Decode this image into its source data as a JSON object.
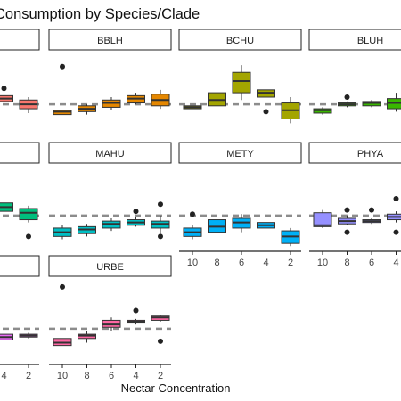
{
  "chart_data": {
    "type": "boxplot-facet",
    "title": "Consumption by Species/Clade",
    "xlabel": "Nectar Concentration",
    "ylabel": "",
    "categories": [
      "10",
      "8",
      "6",
      "4",
      "2"
    ],
    "reference_line": "dashed grey horizontal line",
    "facets": [
      {
        "name": "",
        "colour": "#F8766D",
        "boxes": [
          {
            "cat": "4",
            "q1": 0.57,
            "med": 0.59,
            "q3": 0.61,
            "lo": 0.55,
            "hi": 0.63,
            "out": [
              0.66
            ]
          },
          {
            "cat": "2",
            "q1": 0.52,
            "med": 0.55,
            "q3": 0.58,
            "lo": 0.49,
            "hi": 0.6,
            "out": []
          }
        ]
      },
      {
        "name": "BBLH",
        "colour": "#E58700",
        "boxes": [
          {
            "cat": "10",
            "q1": 0.48,
            "med": 0.5,
            "q3": 0.51,
            "lo": 0.48,
            "hi": 0.51,
            "out": [
              0.81
            ]
          },
          {
            "cat": "8",
            "q1": 0.5,
            "med": 0.52,
            "q3": 0.54,
            "lo": 0.48,
            "hi": 0.55,
            "out": []
          },
          {
            "cat": "6",
            "q1": 0.53,
            "med": 0.56,
            "q3": 0.58,
            "lo": 0.51,
            "hi": 0.6,
            "out": []
          },
          {
            "cat": "4",
            "q1": 0.56,
            "med": 0.59,
            "q3": 0.61,
            "lo": 0.55,
            "hi": 0.63,
            "out": []
          },
          {
            "cat": "2",
            "q1": 0.54,
            "med": 0.58,
            "q3": 0.62,
            "lo": 0.52,
            "hi": 0.65,
            "out": []
          }
        ]
      },
      {
        "name": "BCHU",
        "colour": "#A3A500",
        "boxes": [
          {
            "cat": "10",
            "q1": 0.52,
            "med": 0.53,
            "q3": 0.54,
            "lo": 0.52,
            "hi": 0.54,
            "out": []
          },
          {
            "cat": "8",
            "q1": 0.54,
            "med": 0.58,
            "q3": 0.63,
            "lo": 0.5,
            "hi": 0.67,
            "out": []
          },
          {
            "cat": "6",
            "q1": 0.63,
            "med": 0.71,
            "q3": 0.77,
            "lo": 0.58,
            "hi": 0.82,
            "out": []
          },
          {
            "cat": "4",
            "q1": 0.6,
            "med": 0.63,
            "q3": 0.65,
            "lo": 0.58,
            "hi": 0.69,
            "out": [
              0.5
            ]
          },
          {
            "cat": "2",
            "q1": 0.45,
            "med": 0.51,
            "q3": 0.56,
            "lo": 0.42,
            "hi": 0.6,
            "out": []
          }
        ]
      },
      {
        "name": "BLUH",
        "colour": "#39B600",
        "boxes": [
          {
            "cat": "10",
            "q1": 0.49,
            "med": 0.51,
            "q3": 0.52,
            "lo": 0.48,
            "hi": 0.53,
            "out": []
          },
          {
            "cat": "8",
            "q1": 0.54,
            "med": 0.55,
            "q3": 0.56,
            "lo": 0.53,
            "hi": 0.57,
            "out": [
              0.6
            ]
          },
          {
            "cat": "6",
            "q1": 0.54,
            "med": 0.56,
            "q3": 0.57,
            "lo": 0.53,
            "hi": 0.58,
            "out": []
          },
          {
            "cat": "4",
            "q1": 0.52,
            "med": 0.56,
            "q3": 0.59,
            "lo": 0.5,
            "hi": 0.63,
            "out": []
          }
        ]
      },
      {
        "name": "",
        "colour": "#00BF7D",
        "boxes": [
          {
            "cat": "4",
            "q1": 0.58,
            "med": 0.61,
            "q3": 0.64,
            "lo": 0.55,
            "hi": 0.67,
            "out": []
          },
          {
            "cat": "2",
            "q1": 0.52,
            "med": 0.57,
            "q3": 0.6,
            "lo": 0.5,
            "hi": 0.62,
            "out": [
              0.4
            ]
          }
        ]
      },
      {
        "name": "MAHU",
        "colour": "#00BFC4",
        "boxes": [
          {
            "cat": "10",
            "q1": 0.4,
            "med": 0.43,
            "q3": 0.46,
            "lo": 0.38,
            "hi": 0.48,
            "out": []
          },
          {
            "cat": "8",
            "q1": 0.42,
            "med": 0.45,
            "q3": 0.47,
            "lo": 0.4,
            "hi": 0.49,
            "out": []
          },
          {
            "cat": "6",
            "q1": 0.46,
            "med": 0.49,
            "q3": 0.51,
            "lo": 0.44,
            "hi": 0.53,
            "out": []
          },
          {
            "cat": "4",
            "q1": 0.48,
            "med": 0.5,
            "q3": 0.52,
            "lo": 0.47,
            "hi": 0.54,
            "out": [
              0.58
            ]
          },
          {
            "cat": "2",
            "q1": 0.46,
            "med": 0.49,
            "q3": 0.51,
            "lo": 0.42,
            "hi": 0.55,
            "out": [
              0.63,
              0.4
            ]
          }
        ]
      },
      {
        "name": "METY",
        "colour": "#00B0F6",
        "boxes": [
          {
            "cat": "10",
            "q1": 0.4,
            "med": 0.43,
            "q3": 0.46,
            "lo": 0.38,
            "hi": 0.48,
            "out": [
              0.56
            ]
          },
          {
            "cat": "8",
            "q1": 0.43,
            "med": 0.47,
            "q3": 0.52,
            "lo": 0.4,
            "hi": 0.55,
            "out": []
          },
          {
            "cat": "6",
            "q1": 0.46,
            "med": 0.5,
            "q3": 0.53,
            "lo": 0.43,
            "hi": 0.56,
            "out": []
          },
          {
            "cat": "4",
            "q1": 0.46,
            "med": 0.48,
            "q3": 0.5,
            "lo": 0.45,
            "hi": 0.51,
            "out": []
          },
          {
            "cat": "2",
            "q1": 0.35,
            "med": 0.4,
            "q3": 0.44,
            "lo": 0.33,
            "hi": 0.46,
            "out": []
          }
        ]
      },
      {
        "name": "PHYA",
        "colour": "#9590FF",
        "boxes": [
          {
            "cat": "10",
            "q1": 0.47,
            "med": 0.48,
            "q3": 0.57,
            "lo": 0.46,
            "hi": 0.59,
            "out": []
          },
          {
            "cat": "8",
            "q1": 0.49,
            "med": 0.51,
            "q3": 0.53,
            "lo": 0.48,
            "hi": 0.55,
            "out": [
              0.43,
              0.59
            ]
          },
          {
            "cat": "6",
            "q1": 0.5,
            "med": 0.51,
            "q3": 0.52,
            "lo": 0.49,
            "hi": 0.53,
            "out": [
              0.59
            ]
          },
          {
            "cat": "4",
            "q1": 0.52,
            "med": 0.54,
            "q3": 0.56,
            "lo": 0.5,
            "hi": 0.58,
            "out": [
              0.67,
              0.43
            ]
          }
        ]
      },
      {
        "name": "",
        "colour": "#E76BF3",
        "boxes": [
          {
            "cat": "4",
            "q1": 0.47,
            "med": 0.49,
            "q3": 0.51,
            "lo": 0.45,
            "hi": 0.53,
            "out": []
          },
          {
            "cat": "2",
            "q1": 0.49,
            "med": 0.5,
            "q3": 0.51,
            "lo": 0.48,
            "hi": 0.52,
            "out": []
          }
        ]
      },
      {
        "name": "URBE",
        "colour": "#FF67A4",
        "boxes": [
          {
            "cat": "10",
            "q1": 0.43,
            "med": 0.45,
            "q3": 0.48,
            "lo": 0.43,
            "hi": 0.48,
            "out": [
              0.85
            ]
          },
          {
            "cat": "8",
            "q1": 0.48,
            "med": 0.5,
            "q3": 0.51,
            "lo": 0.45,
            "hi": 0.53,
            "out": []
          },
          {
            "cat": "6",
            "q1": 0.56,
            "med": 0.58,
            "q3": 0.61,
            "lo": 0.53,
            "hi": 0.63,
            "out": []
          },
          {
            "cat": "4",
            "q1": 0.59,
            "med": 0.6,
            "q3": 0.61,
            "lo": 0.58,
            "hi": 0.62,
            "out": [
              0.68
            ]
          },
          {
            "cat": "2",
            "q1": 0.61,
            "med": 0.63,
            "q3": 0.64,
            "lo": 0.6,
            "hi": 0.65,
            "out": [
              0.46
            ]
          }
        ]
      }
    ]
  }
}
